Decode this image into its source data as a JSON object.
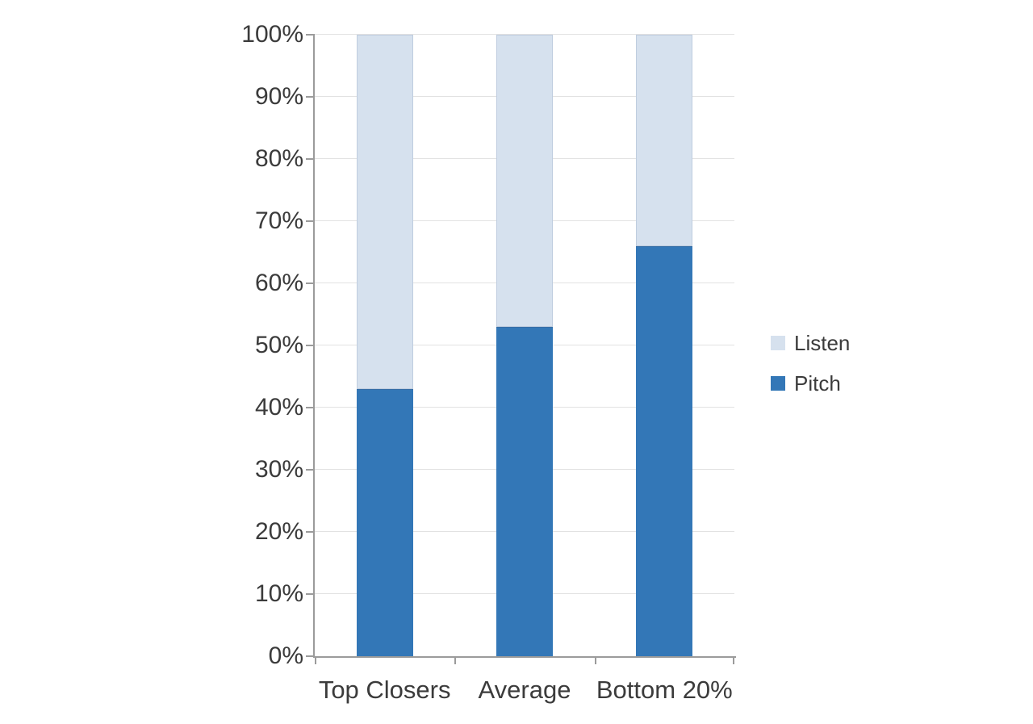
{
  "chart_data": {
    "type": "bar",
    "subtype": "stacked-100-percent",
    "title": "",
    "xlabel": "",
    "ylabel": "",
    "categories": [
      "Top Closers",
      "Average",
      "Bottom 20%"
    ],
    "series": [
      {
        "name": "Listen",
        "color": "#d6e1ee",
        "values": [
          57,
          47,
          34
        ]
      },
      {
        "name": "Pitch",
        "color": "#3377b7",
        "values": [
          43,
          53,
          66
        ]
      }
    ],
    "stack_order_bottom_to_top": [
      "Pitch",
      "Listen"
    ],
    "ylim": [
      0,
      100
    ],
    "y_tick_step": 10,
    "y_tick_labels": [
      "0%",
      "10%",
      "20%",
      "30%",
      "40%",
      "50%",
      "60%",
      "70%",
      "80%",
      "90%",
      "100%"
    ],
    "grid": true,
    "legend": {
      "position": "right",
      "entries": [
        "Listen",
        "Pitch"
      ]
    }
  },
  "colors": {
    "background": "#ffffff",
    "axis": "#9b9b9b",
    "gridline": "#e2e2e2",
    "text": "#3b3b3b",
    "listen": "#d6e1ee",
    "pitch": "#3377b7"
  }
}
